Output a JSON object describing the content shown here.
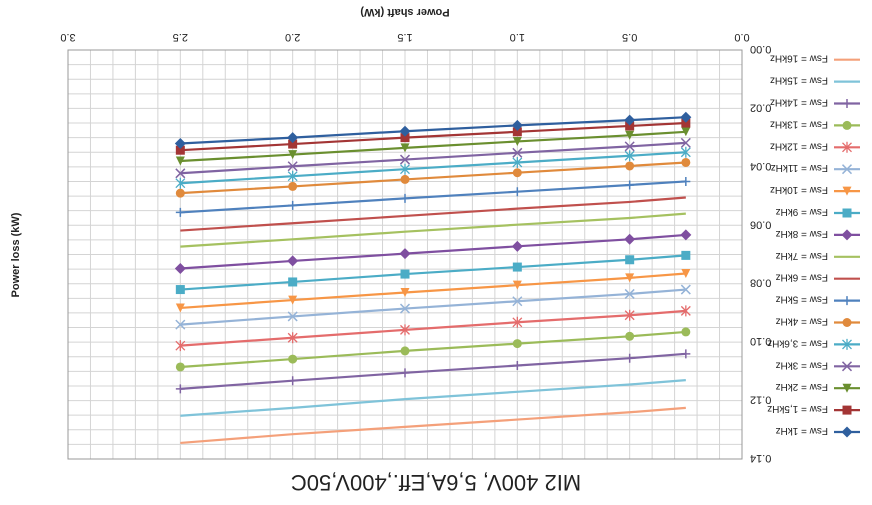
{
  "chart_data": {
    "type": "line",
    "title": "MI2 400V, 5,6A,Eff.,400V,50C",
    "xlabel": "Power shaft (kW)",
    "ylabel": "Power loss (kW)",
    "orientation": "rotated 180°",
    "xlim": [
      0,
      3.0
    ],
    "ylim": [
      0,
      0.14
    ],
    "x_ticks": [
      "0.0",
      "0.5",
      "1.0",
      "1.5",
      "2.0",
      "2.5",
      "3.0"
    ],
    "y_ticks": [
      "0.00",
      "0.02",
      "0.04",
      "0.06",
      "0.08",
      "0.10",
      "0.12",
      "0.14"
    ],
    "grid": true,
    "legend_position": "left",
    "x": [
      0.25,
      0.5,
      1.0,
      1.5,
      2.0,
      2.5
    ],
    "series": [
      {
        "name": "Fsw = 16kHz",
        "color": "#f4a07a",
        "marker": "none",
        "values": [
          0.1225,
          0.124,
          0.1265,
          0.129,
          0.1315,
          0.1345
        ]
      },
      {
        "name": "Fsw = 15kHz",
        "color": "#7fc3d9",
        "marker": "none",
        "values": [
          0.113,
          0.1145,
          0.117,
          0.1195,
          0.1225,
          0.1252
        ]
      },
      {
        "name": "Fsw = 14kHz",
        "color": "#8064a2",
        "marker": "plus",
        "values": [
          0.104,
          0.1055,
          0.108,
          0.1105,
          0.1132,
          0.116
        ]
      },
      {
        "name": "Fsw = 13kHz",
        "color": "#9bbb59",
        "marker": "circle",
        "values": [
          0.0965,
          0.098,
          0.1005,
          0.103,
          0.1058,
          0.1085
        ]
      },
      {
        "name": "Fsw = 12kHz",
        "color": "#e46c6c",
        "marker": "star",
        "values": [
          0.0893,
          0.0908,
          0.0932,
          0.0958,
          0.0985,
          0.1012
        ]
      },
      {
        "name": "Fsw = 11kHz",
        "color": "#95b3d7",
        "marker": "x",
        "values": [
          0.082,
          0.0835,
          0.086,
          0.0885,
          0.0912,
          0.094
        ]
      },
      {
        "name": "Fsw = 10kHz",
        "color": "#f79646",
        "marker": "triangle",
        "values": [
          0.0765,
          0.078,
          0.0805,
          0.083,
          0.0856,
          0.0883
        ]
      },
      {
        "name": "Fsw = 9kHz",
        "color": "#4bacc6",
        "marker": "square",
        "values": [
          0.0703,
          0.0718,
          0.0743,
          0.0767,
          0.0794,
          0.082
        ]
      },
      {
        "name": "Fsw = 8kHz",
        "color": "#7f4fa0",
        "marker": "diamond",
        "values": [
          0.0633,
          0.0648,
          0.0672,
          0.0697,
          0.0722,
          0.0748
        ]
      },
      {
        "name": "Fsw = 7kHz",
        "color": "#a5c160",
        "marker": "none",
        "values": [
          0.056,
          0.0575,
          0.0598,
          0.0622,
          0.0648,
          0.0673
        ]
      },
      {
        "name": "Fsw = 6kHz",
        "color": "#c0504d",
        "marker": "none",
        "values": [
          0.0505,
          0.052,
          0.0543,
          0.0568,
          0.0593,
          0.0618
        ]
      },
      {
        "name": "Fsw = 5kHz",
        "color": "#4f81bd",
        "marker": "plus",
        "values": [
          0.045,
          0.0462,
          0.0485,
          0.0508,
          0.0532,
          0.0556
        ]
      },
      {
        "name": "Fsw = 4kHz",
        "color": "#e08a3c",
        "marker": "circle",
        "values": [
          0.0385,
          0.0397,
          0.042,
          0.0443,
          0.0467,
          0.049
        ]
      },
      {
        "name": "Fsw = 3,6kHz",
        "color": "#4bacc6",
        "marker": "star",
        "values": [
          0.035,
          0.0362,
          0.0385,
          0.0408,
          0.0432,
          0.0456
        ]
      },
      {
        "name": "Fsw = 3kHz",
        "color": "#8064a2",
        "marker": "x",
        "values": [
          0.0318,
          0.033,
          0.0352,
          0.0375,
          0.0398,
          0.0422
        ]
      },
      {
        "name": "Fsw = 2kHz",
        "color": "#6a8f2f",
        "marker": "triangle",
        "values": [
          0.028,
          0.0292,
          0.0313,
          0.0335,
          0.0358,
          0.038
        ]
      },
      {
        "name": "Fsw = 1,5kHz",
        "color": "#a33535",
        "marker": "square",
        "values": [
          0.025,
          0.026,
          0.028,
          0.03,
          0.0322,
          0.0343
        ]
      },
      {
        "name": "Fsw = 1kHz",
        "color": "#2f5f9e",
        "marker": "diamond",
        "values": [
          0.023,
          0.024,
          0.0258,
          0.0278,
          0.03,
          0.032
        ]
      }
    ]
  }
}
